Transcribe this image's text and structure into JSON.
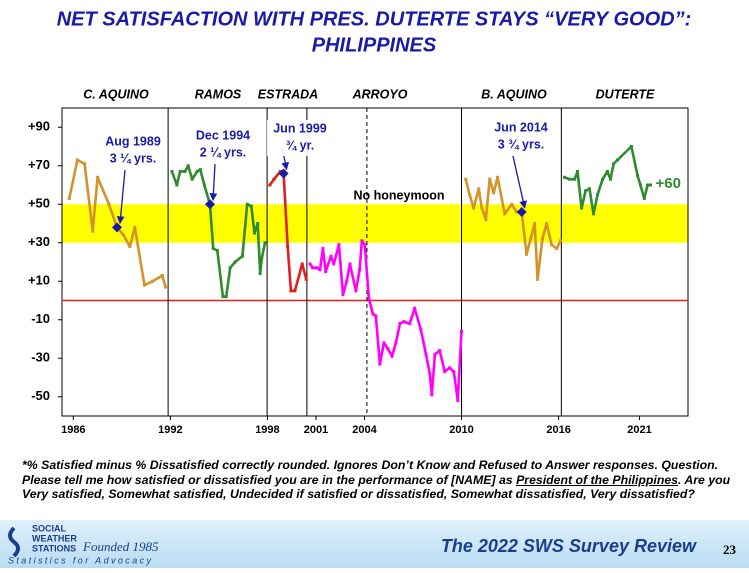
{
  "chart_data": {
    "type": "line",
    "title": "NET SATISFACTION WITH PRES. DUTERTE STAYS “VERY GOOD”:",
    "title_line2": "PHILIPPINES",
    "xlim": [
      1985.3,
      2024
    ],
    "ylim": [
      -60,
      100
    ],
    "xticks": [
      1986,
      1992,
      1998,
      2001,
      2004,
      2010,
      2016,
      2021
    ],
    "yticks": [
      {
        "value": 90,
        "label": "+90"
      },
      {
        "value": 70,
        "label": "+70"
      },
      {
        "value": 50,
        "label": "+50"
      },
      {
        "value": 30,
        "label": "+30"
      },
      {
        "value": 10,
        "label": "+10"
      },
      -10,
      -30,
      -50
    ],
    "band": [
      30,
      50
    ],
    "band_color": "#ffff00",
    "ref_line": 0,
    "ref_color": "#e02020",
    "term_lines": [
      {
        "value": 1991.86,
        "style": "solid"
      },
      {
        "value": 1997.98,
        "style": "solid"
      },
      {
        "value": 2000.44,
        "style": "solid"
      },
      {
        "value": 2004.15,
        "style": "dashed"
      },
      {
        "value": 2010.0,
        "style": "solid"
      },
      {
        "value": 2016.17,
        "style": "solid"
      }
    ],
    "administrations": [
      "C. AQUINO",
      "RAMOS",
      "ESTRADA",
      "ARROYO",
      "B. AQUINO",
      "DUTERTE"
    ],
    "series": [
      {
        "name": "C. AQUINO",
        "color": "#d4922a",
        "x": [
          1985.75,
          1986.25,
          1986.7,
          1987.2,
          1987.5,
          1988.2,
          1988.7,
          1989.1,
          1989.5,
          1989.8,
          1990.4,
          1990.9,
          1991.5,
          1991.7
        ],
        "values": [
          53,
          73,
          71,
          36,
          64,
          50,
          38,
          34,
          28,
          38,
          8,
          10,
          13,
          7
        ]
      },
      {
        "name": "RAMOS",
        "color": "#2e8b2e",
        "x": [
          1992.1,
          1992.4,
          1992.6,
          1992.9,
          1993.1,
          1993.35,
          1993.65,
          1993.85,
          1994.1,
          1994.45,
          1994.65,
          1994.9,
          1995.25,
          1995.45,
          1995.7,
          1996.0,
          1996.45,
          1996.75,
          1997.0,
          1997.2,
          1997.4,
          1997.55,
          1997.65,
          1997.85
        ],
        "values": [
          67,
          60,
          67,
          67,
          70,
          63,
          67,
          68,
          60,
          50,
          27,
          26,
          2,
          2,
          17,
          20,
          23,
          50,
          49,
          35,
          40,
          14,
          22,
          30
        ]
      },
      {
        "name": "ESTRADA",
        "color": "#e02020",
        "x": [
          1998.15,
          1998.4,
          1998.8,
          1999.0,
          1999.25,
          1999.45,
          1999.7,
          2000.15,
          2000.4
        ],
        "values": [
          60,
          63,
          67,
          66,
          28,
          5,
          5,
          19,
          11
        ]
      },
      {
        "name": "ARROYO",
        "color": "#ff00ff",
        "x": [
          2000.63,
          2000.8,
          2001.06,
          2001.25,
          2001.43,
          2001.6,
          2001.93,
          2002.1,
          2002.42,
          2002.67,
          2002.9,
          2003.1,
          2003.47,
          2003.7,
          2003.84,
          2004.02,
          2004.27,
          2004.52,
          2004.7,
          2004.95,
          2005.2,
          2005.44,
          2005.7,
          2005.94,
          2006.19,
          2006.43,
          2006.8,
          2007.1,
          2007.48,
          2007.8,
          2008.04,
          2008.16,
          2008.35,
          2008.65,
          2008.96,
          2009.27,
          2009.52,
          2009.77,
          2010.0
        ],
        "values": [
          19,
          17,
          17,
          16,
          27,
          15,
          23,
          19,
          29,
          3,
          10,
          19,
          5,
          16,
          31,
          29,
          1,
          -7,
          -8,
          -33,
          -22,
          -25,
          -29,
          -22,
          -12,
          -11,
          -12,
          -4,
          -15,
          -28,
          -38,
          -49,
          -28,
          -26,
          -37,
          -35,
          -37,
          -52,
          -16
        ]
      },
      {
        "name": "B. AQUINO",
        "color": "#d4922a",
        "x": [
          2010.26,
          2010.5,
          2010.75,
          2011.06,
          2011.25,
          2011.5,
          2011.74,
          2011.99,
          2012.23,
          2012.67,
          2013.1,
          2013.4,
          2013.72,
          2014.02,
          2014.27,
          2014.52,
          2014.7,
          2015.0,
          2015.26,
          2015.57,
          2015.88,
          2016.12
        ],
        "values": [
          63,
          55,
          48,
          58,
          48,
          42,
          63,
          56,
          64,
          45,
          50,
          46,
          46,
          24,
          32,
          40,
          11,
          32,
          40,
          29,
          27,
          31
        ]
      },
      {
        "name": "DUTERTE",
        "color": "#2e8b2e",
        "x": [
          2016.37,
          2016.68,
          2016.99,
          2017.17,
          2017.42,
          2017.67,
          2017.91,
          2018.16,
          2018.41,
          2018.72,
          2019.02,
          2019.21,
          2019.4,
          2019.64,
          2020.5,
          2020.88,
          2021.06,
          2021.3,
          2021.5,
          2021.68
        ],
        "values": [
          64,
          63,
          63,
          67,
          48,
          57,
          58,
          45,
          55,
          63,
          67,
          63,
          71,
          73,
          80,
          65,
          60,
          53,
          60,
          60
        ],
        "value_labels": [
          null,
          null,
          null,
          null,
          null,
          null,
          null,
          null,
          null,
          null,
          null,
          null,
          null,
          null,
          null,
          null,
          null,
          null,
          null,
          "+60"
        ]
      }
    ],
    "annotations": [
      {
        "text": "Aug 1989",
        "sub": "3 ¼ yrs."
      },
      {
        "text": "Dec 1994",
        "sub": "2 ¼ yrs."
      },
      {
        "text": "Jun 1999",
        "sub": "¾ yr."
      },
      {
        "text": "Jun 2014",
        "sub": "3 ¾ yrs."
      }
    ],
    "annotation_color": "#1a1aa8",
    "note_text": "No honeymoon"
  },
  "footnote": {
    "note": "*% Satisfied minus % Dissatisfied correctly rounded. Ignores Don’t Know and Refused to Answer responses.",
    "question_label": "Question.",
    "question": "Please tell me how satisfied or dissatisfied you are in the performance of [NAME] as",
    "question_underlined": "President of the Philippines",
    "question_end": ".  Are you Very satisfied, Somewhat satisfied, Undecided if satisfied or dissatisfied, Somewhat dissatisfied, Very dissatisfied?"
  },
  "footer": {
    "logo_line1": "SOCIAL",
    "logo_line2": "WEATHER",
    "logo_line3": "STATIONS",
    "founded": "Founded 1985",
    "tagline": "Statistics for Advocacy",
    "review": "The 2022 SWS Survey Review",
    "page": "23"
  }
}
